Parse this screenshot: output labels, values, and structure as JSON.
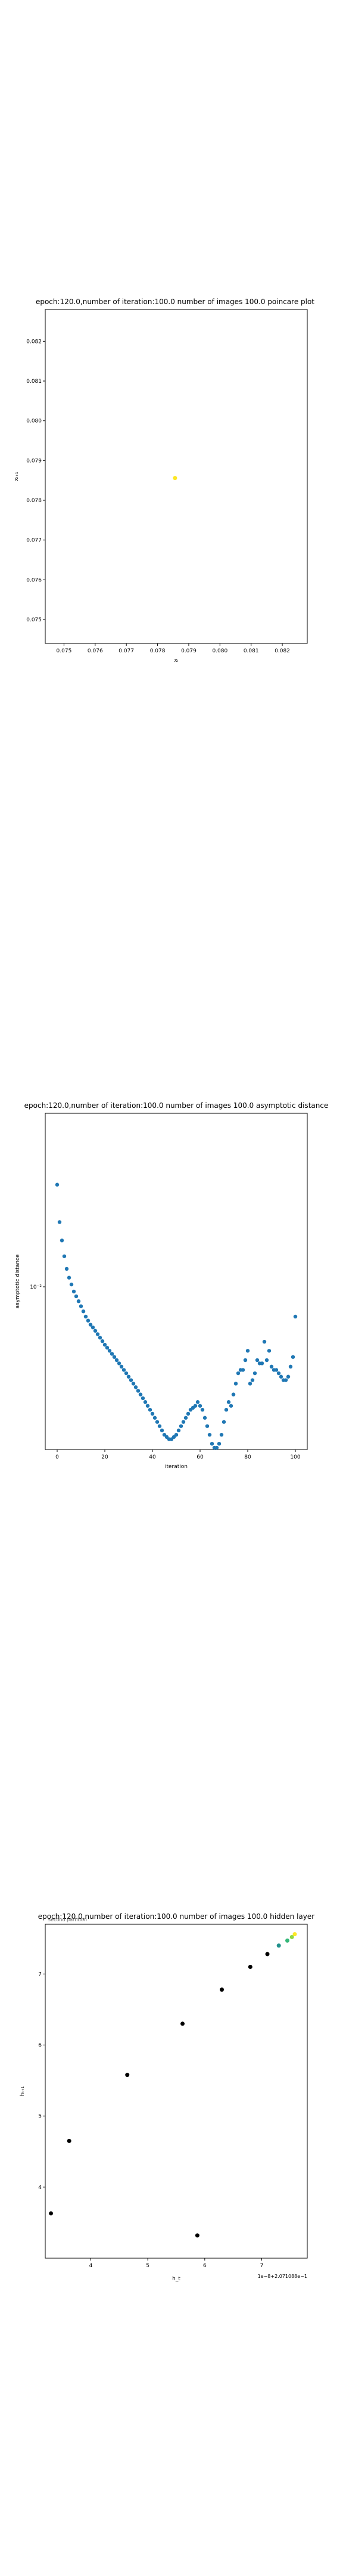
{
  "chart_data": [
    {
      "type": "scatter",
      "title": "epoch:120.0,number of iteration:100.0  number of images 100.0 poincare plot",
      "xlabel": "xᵢ",
      "ylabel": "xᵢ₊₁",
      "xlim": [
        0.0744,
        0.0828
      ],
      "ylim": [
        0.0744,
        0.0828
      ],
      "xticks": [
        "0.075",
        "0.076",
        "0.077",
        "0.078",
        "0.079",
        "0.080",
        "0.081",
        "0.082"
      ],
      "yticks": [
        "0.075",
        "0.076",
        "0.077",
        "0.078",
        "0.079",
        "0.080",
        "0.081",
        "0.082"
      ],
      "points": [
        {
          "x": 0.07856,
          "y": 0.07856
        }
      ],
      "point_color": "#fde725",
      "grid": false
    },
    {
      "type": "scatter",
      "title": "epoch:120.0,number of iteration:100.0  number of images 100.0 asymptotic distance",
      "xlabel": "iteration",
      "ylabel": "asymptotic distance",
      "y_scale": "log",
      "y_tick_label": "10⁻²",
      "xlim": [
        -5,
        105
      ],
      "xticks": [
        "0",
        "20",
        "40",
        "60",
        "80",
        "100"
      ],
      "y": [
        0.0155,
        0.0132,
        0.0122,
        0.0114,
        0.0108,
        0.0104,
        0.0101,
        0.0098,
        0.0096,
        0.0094,
        0.0092,
        0.009,
        0.0088,
        0.00865,
        0.0085,
        0.0084,
        0.00828,
        0.00816,
        0.00804,
        0.00792,
        0.0078,
        0.0077,
        0.0076,
        0.0075,
        0.0074,
        0.0073,
        0.0072,
        0.0071,
        0.007,
        0.0069,
        0.0068,
        0.0067,
        0.0066,
        0.0065,
        0.0064,
        0.0063,
        0.0062,
        0.0061,
        0.006,
        0.0059,
        0.0058,
        0.0057,
        0.0056,
        0.0055,
        0.0054,
        0.0053,
        0.00525,
        0.0052,
        0.0052,
        0.00525,
        0.0053,
        0.0054,
        0.0055,
        0.0056,
        0.0057,
        0.0058,
        0.0059,
        0.00595,
        0.006,
        0.0061,
        0.006,
        0.0059,
        0.0057,
        0.0055,
        0.0053,
        0.0051,
        0.005,
        0.005,
        0.0051,
        0.0053,
        0.0056,
        0.0059,
        0.0061,
        0.006,
        0.0063,
        0.0066,
        0.0069,
        0.007,
        0.007,
        0.0073,
        0.0076,
        0.0066,
        0.0067,
        0.0069,
        0.0073,
        0.0072,
        0.0072,
        0.0079,
        0.0073,
        0.0076,
        0.0071,
        0.007,
        0.007,
        0.0069,
        0.0068,
        0.0067,
        0.0067,
        0.0068,
        0.0071,
        0.0074,
        0.0088
      ],
      "point_color": "#1f77b4",
      "grid": false
    },
    {
      "type": "scatter",
      "title": "epoch:120.0,number of iteration:100.0  number of images 100.0 hidden layer",
      "xlabel": "h_t",
      "ylabel": "hₜ₊₁",
      "x_offset_label": "1e−8+2.071088e−1",
      "legend_text": "Second partition",
      "xlim": [
        3.2,
        7.8
      ],
      "ylim": [
        3.0,
        7.7
      ],
      "xticks": [
        "4",
        "5",
        "6",
        "7"
      ],
      "yticks": [
        "4",
        "5",
        "6",
        "7"
      ],
      "points": [
        {
          "x": 3.3,
          "y": 3.63
        },
        {
          "x": 3.62,
          "y": 4.65
        },
        {
          "x": 4.64,
          "y": 5.58
        },
        {
          "x": 5.61,
          "y": 6.3
        },
        {
          "x": 5.87,
          "y": 3.32
        },
        {
          "x": 6.3,
          "y": 6.78
        },
        {
          "x": 6.8,
          "y": 7.1
        },
        {
          "x": 7.1,
          "y": 7.28
        },
        {
          "x": 7.3,
          "y": 7.4
        },
        {
          "x": 7.45,
          "y": 7.47
        },
        {
          "x": 7.53,
          "y": 7.52
        },
        {
          "x": 7.58,
          "y": 7.56
        }
      ],
      "point_colors": [
        "#440154",
        "#443983",
        "#31688e",
        "#21918c",
        "#35b779",
        "#90d743",
        "#fde725"
      ]
    }
  ]
}
